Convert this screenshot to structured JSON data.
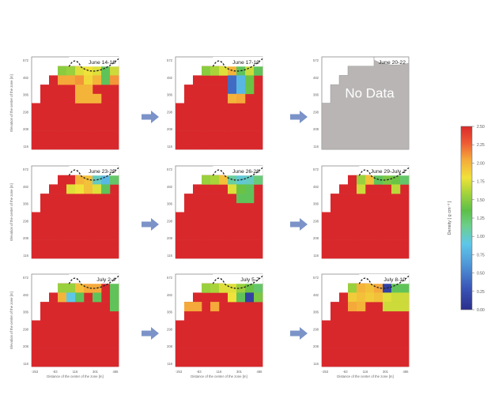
{
  "chart_data": [
    {
      "type": "heatmap",
      "panels": [
        {
          "title": "June 14-16",
          "no_data": false,
          "highlights": [
            {
              "r": 1,
              "c": 3,
              "v": 1.5
            },
            {
              "r": 1,
              "c": 4,
              "v": 1.55
            },
            {
              "r": 1,
              "c": 5,
              "v": 1.75
            },
            {
              "r": 1,
              "c": 6,
              "v": 1.8
            },
            {
              "r": 1,
              "c": 7,
              "v": 1.75
            },
            {
              "r": 1,
              "c": 8,
              "v": 1.3
            },
            {
              "r": 1,
              "c": 9,
              "v": 1.7
            },
            {
              "r": 2,
              "c": 3,
              "v": 2.05
            },
            {
              "r": 2,
              "c": 4,
              "v": 2.05
            },
            {
              "r": 2,
              "c": 5,
              "v": 2.1
            },
            {
              "r": 2,
              "c": 6,
              "v": 1.85
            },
            {
              "r": 2,
              "c": 7,
              "v": 2.0
            },
            {
              "r": 2,
              "c": 8,
              "v": 1.3
            },
            {
              "r": 2,
              "c": 9,
              "v": 2.1
            },
            {
              "r": 3,
              "c": 5,
              "v": 2.0
            },
            {
              "r": 3,
              "c": 6,
              "v": 2.0
            },
            {
              "r": 4,
              "c": 5,
              "v": 2.0
            },
            {
              "r": 4,
              "c": 6,
              "v": 2.0
            },
            {
              "r": 4,
              "c": 7,
              "v": 2.0
            }
          ]
        },
        {
          "title": "June 17-19",
          "no_data": false,
          "highlights": [
            {
              "r": 1,
              "c": 3,
              "v": 1.5
            },
            {
              "r": 1,
              "c": 4,
              "v": 1.6
            },
            {
              "r": 1,
              "c": 5,
              "v": 1.75
            },
            {
              "r": 1,
              "c": 6,
              "v": 2.0
            },
            {
              "r": 1,
              "c": 7,
              "v": 1.3
            },
            {
              "r": 1,
              "c": 8,
              "v": 1.7
            },
            {
              "r": 1,
              "c": 9,
              "v": 1.3
            },
            {
              "r": 2,
              "c": 6,
              "v": 0.4
            },
            {
              "r": 2,
              "c": 7,
              "v": 0.8
            },
            {
              "r": 2,
              "c": 8,
              "v": 1.4
            },
            {
              "r": 3,
              "c": 6,
              "v": 0.4
            },
            {
              "r": 3,
              "c": 7,
              "v": 0.8
            },
            {
              "r": 3,
              "c": 8,
              "v": 1.4
            },
            {
              "r": 4,
              "c": 6,
              "v": 2.0
            },
            {
              "r": 4,
              "c": 7,
              "v": 2.05
            }
          ]
        },
        {
          "title": "June 20-22",
          "no_data": true,
          "no_data_label": "No Data",
          "highlights": []
        },
        {
          "title": "June 23-25",
          "no_data": false,
          "highlights": [
            {
              "r": 1,
              "c": 5,
              "v": 2.0
            },
            {
              "r": 1,
              "c": 6,
              "v": 1.95
            },
            {
              "r": 1,
              "c": 7,
              "v": 1.0
            },
            {
              "r": 1,
              "c": 8,
              "v": 0.8
            },
            {
              "r": 1,
              "c": 9,
              "v": 1.25
            },
            {
              "r": 2,
              "c": 4,
              "v": 1.75
            },
            {
              "r": 2,
              "c": 5,
              "v": 1.8
            },
            {
              "r": 2,
              "c": 6,
              "v": 1.95
            },
            {
              "r": 2,
              "c": 7,
              "v": 1.75
            },
            {
              "r": 2,
              "c": 8,
              "v": 1.3
            }
          ]
        },
        {
          "title": "June 26-28",
          "no_data": false,
          "highlights": [
            {
              "r": 1,
              "c": 3,
              "v": 1.55
            },
            {
              "r": 1,
              "c": 4,
              "v": 1.6
            },
            {
              "r": 1,
              "c": 5,
              "v": 1.95
            },
            {
              "r": 1,
              "c": 6,
              "v": 1.1
            },
            {
              "r": 1,
              "c": 7,
              "v": 0.95
            },
            {
              "r": 1,
              "c": 8,
              "v": 1.0
            },
            {
              "r": 1,
              "c": 9,
              "v": 1.2
            },
            {
              "r": 2,
              "c": 6,
              "v": 1.75
            },
            {
              "r": 2,
              "c": 7,
              "v": 1.4
            },
            {
              "r": 2,
              "c": 8,
              "v": 1.3
            },
            {
              "r": 3,
              "c": 7,
              "v": 1.3
            },
            {
              "r": 3,
              "c": 8,
              "v": 1.3
            }
          ]
        },
        {
          "title": "June 29-July 1",
          "no_data": false,
          "highlights": [
            {
              "r": 1,
              "c": 4,
              "v": 1.55
            },
            {
              "r": 1,
              "c": 5,
              "v": 1.95
            },
            {
              "r": 1,
              "c": 6,
              "v": 1.3
            },
            {
              "r": 1,
              "c": 7,
              "v": 1.45
            },
            {
              "r": 1,
              "c": 8,
              "v": 1.4
            },
            {
              "r": 1,
              "c": 9,
              "v": 1.25
            },
            {
              "r": 2,
              "c": 4,
              "v": 1.7
            },
            {
              "r": 2,
              "c": 8,
              "v": 1.65
            }
          ]
        },
        {
          "title": "July 2-4",
          "no_data": false,
          "highlights": [
            {
              "r": 1,
              "c": 3,
              "v": 1.55
            },
            {
              "r": 1,
              "c": 4,
              "v": 1.55
            },
            {
              "r": 1,
              "c": 5,
              "v": 1.95
            },
            {
              "r": 1,
              "c": 6,
              "v": 2.05
            },
            {
              "r": 1,
              "c": 7,
              "v": 2.05
            },
            {
              "r": 1,
              "c": 9,
              "v": 1.3
            },
            {
              "r": 2,
              "c": 3,
              "v": 2.0
            },
            {
              "r": 2,
              "c": 4,
              "v": 0.9
            },
            {
              "r": 2,
              "c": 5,
              "v": 1.3
            },
            {
              "r": 2,
              "c": 7,
              "v": 1.3
            },
            {
              "r": 2,
              "c": 9,
              "v": 1.3
            },
            {
              "r": 3,
              "c": 9,
              "v": 1.3
            }
          ]
        },
        {
          "title": "July 5-7",
          "no_data": false,
          "highlights": [
            {
              "r": 1,
              "c": 3,
              "v": 1.55
            },
            {
              "r": 1,
              "c": 4,
              "v": 1.6
            },
            {
              "r": 1,
              "c": 5,
              "v": 1.75
            },
            {
              "r": 1,
              "c": 6,
              "v": 1.75
            },
            {
              "r": 1,
              "c": 7,
              "v": 1.55
            },
            {
              "r": 1,
              "c": 8,
              "v": 1.4
            },
            {
              "r": 1,
              "c": 9,
              "v": 1.25
            },
            {
              "r": 2,
              "c": 6,
              "v": 1.8
            },
            {
              "r": 2,
              "c": 7,
              "v": 1.3
            },
            {
              "r": 2,
              "c": 8,
              "v": 0.15
            },
            {
              "r": 2,
              "c": 9,
              "v": 1.45
            },
            {
              "r": 3,
              "c": 1,
              "v": 2.05
            },
            {
              "r": 3,
              "c": 2,
              "v": 2.05
            },
            {
              "r": 3,
              "c": 4,
              "v": 2.05
            }
          ]
        },
        {
          "title": "July 8-10",
          "no_data": false,
          "highlights": [
            {
              "r": 1,
              "c": 3,
              "v": 1.55
            },
            {
              "r": 1,
              "c": 4,
              "v": 2.0
            },
            {
              "r": 1,
              "c": 5,
              "v": 1.95
            },
            {
              "r": 1,
              "c": 6,
              "v": 2.05
            },
            {
              "r": 1,
              "c": 7,
              "v": 0.15
            },
            {
              "r": 1,
              "c": 8,
              "v": 1.3
            },
            {
              "r": 1,
              "c": 9,
              "v": 1.3
            },
            {
              "r": 2,
              "c": 3,
              "v": 1.9
            },
            {
              "r": 2,
              "c": 4,
              "v": 1.95
            },
            {
              "r": 2,
              "c": 5,
              "v": 1.9
            },
            {
              "r": 2,
              "c": 6,
              "v": 1.95
            },
            {
              "r": 2,
              "c": 7,
              "v": 1.75
            },
            {
              "r": 2,
              "c": 8,
              "v": 1.7
            },
            {
              "r": 2,
              "c": 9,
              "v": 1.7
            },
            {
              "r": 3,
              "c": 3,
              "v": 2.05
            },
            {
              "r": 3,
              "c": 4,
              "v": 2.0
            },
            {
              "r": 3,
              "c": 7,
              "v": 1.7
            },
            {
              "r": 3,
              "c": 8,
              "v": 1.7
            },
            {
              "r": 3,
              "c": 9,
              "v": 1.7
            }
          ]
        }
      ],
      "base_value": 2.45,
      "ylabel": "Elevation of the center of the zone [m]",
      "xlabel": "Distance of the center of the zone [m]",
      "y_ticks": [
        "572",
        "482",
        "386",
        "298",
        "208",
        "116"
      ],
      "x_ticks": [
        "-253",
        "-83",
        "116",
        "301",
        "486"
      ],
      "colorbar": {
        "label": "Density [ g cm⁻³ ]",
        "ticks": [
          "2.50",
          "2.25",
          "2.00",
          "1.75",
          "1.50",
          "1.25",
          "1.00",
          "0.75",
          "0.50",
          "0.25",
          "0.00"
        ],
        "vmin": 0.0,
        "vmax": 2.5
      }
    }
  ]
}
